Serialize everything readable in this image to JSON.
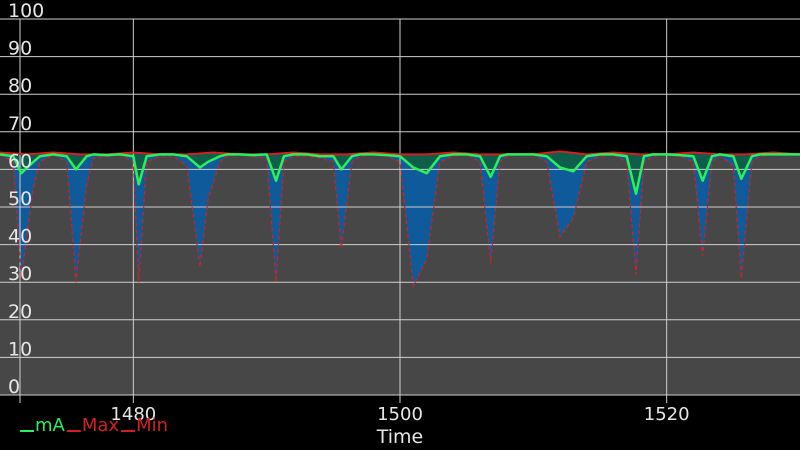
{
  "chart_data": {
    "type": "line",
    "title": "",
    "xlabel": "Time",
    "ylabel": "",
    "xlim": [
      1470,
      1530
    ],
    "ylim": [
      0,
      100
    ],
    "x_ticks": [
      1480,
      1500,
      1520
    ],
    "y_ticks": [
      0,
      10,
      20,
      30,
      40,
      50,
      60,
      70,
      80,
      90,
      100
    ],
    "grid": true,
    "legend": "bottom-left",
    "colors": {
      "background": "#000000",
      "plot_area_low": "#474747",
      "grid": "#cfcfcf",
      "fill_mA": "#0f5a9a",
      "fill_band": "#0d5e4a",
      "mA": "#2af05a",
      "Max": "#d42020",
      "Min": "#d42020"
    },
    "series": [
      {
        "name": "mA",
        "color": "#2af05a",
        "x": [
          1470,
          1471,
          1471.6,
          1472.5,
          1473,
          1474,
          1475,
          1475.7,
          1476.5,
          1477,
          1478,
          1479,
          1480,
          1480.4,
          1481,
          1482,
          1483,
          1484,
          1485,
          1485.6,
          1486.5,
          1487,
          1488,
          1489,
          1490,
          1490.7,
          1491.3,
          1492,
          1493,
          1494,
          1495,
          1495.6,
          1496.4,
          1497,
          1498,
          1499,
          1500,
          1501,
          1502,
          1503,
          1504,
          1505,
          1506,
          1506.8,
          1507.5,
          1508,
          1509,
          1510,
          1511,
          1512,
          1513,
          1514,
          1515,
          1516,
          1517,
          1517.7,
          1518.3,
          1519,
          1520,
          1521,
          1522,
          1522.7,
          1523.4,
          1524,
          1525,
          1525.6,
          1526.4,
          1527,
          1528,
          1529,
          1530
        ],
        "values": [
          64,
          63.5,
          59,
          62,
          63.5,
          64,
          63.5,
          60,
          63.5,
          64,
          63.8,
          64,
          63.5,
          56,
          63.5,
          64,
          64,
          63.5,
          60.5,
          62,
          63.5,
          64,
          64,
          63.8,
          64,
          57,
          63.5,
          64,
          64,
          63.5,
          63.5,
          60,
          63.5,
          64,
          64,
          63.8,
          63.5,
          60.5,
          59,
          63.5,
          64,
          64,
          63.5,
          58,
          63.5,
          64,
          64,
          64,
          63.5,
          60.5,
          59.5,
          63.5,
          64,
          64,
          63.5,
          53.5,
          63.5,
          64,
          64,
          63.8,
          63.5,
          57,
          63.5,
          64,
          63.5,
          57.5,
          63.5,
          64,
          64,
          64,
          64
        ]
      },
      {
        "name": "Max",
        "color": "#d42020",
        "x": [
          1470,
          1472,
          1474,
          1476,
          1478,
          1480,
          1482,
          1484,
          1486,
          1488,
          1490,
          1492,
          1494,
          1496,
          1498,
          1500,
          1502,
          1504,
          1506,
          1508,
          1510,
          1512,
          1514,
          1516,
          1518,
          1520,
          1522,
          1524,
          1526,
          1528,
          1530
        ],
        "values": [
          64.5,
          64,
          64.5,
          64,
          64,
          64.5,
          64,
          64,
          64.5,
          64,
          64,
          64.5,
          64,
          64,
          64.5,
          64,
          64,
          64.5,
          64,
          64,
          64,
          64.8,
          64,
          64.5,
          64,
          64,
          64.5,
          64,
          64,
          64.5,
          64
        ]
      },
      {
        "name": "Min",
        "color": "#d42020",
        "x": [
          1470,
          1471,
          1471.6,
          1472.5,
          1473,
          1474,
          1475,
          1475.7,
          1476.5,
          1477,
          1478,
          1479,
          1480,
          1480.4,
          1481,
          1482,
          1483,
          1484,
          1485,
          1485.6,
          1486.5,
          1487,
          1488,
          1489,
          1490,
          1490.7,
          1491.3,
          1492,
          1493,
          1494,
          1495,
          1495.6,
          1496.4,
          1497,
          1498,
          1499,
          1500,
          1501,
          1502,
          1503,
          1504,
          1505,
          1506,
          1506.8,
          1507.5,
          1508,
          1509,
          1510,
          1511,
          1512,
          1513,
          1514,
          1515,
          1516,
          1517,
          1517.7,
          1518.3,
          1519,
          1520,
          1521,
          1522,
          1522.7,
          1523.4,
          1524,
          1525,
          1525.6,
          1526.4,
          1527,
          1528,
          1529,
          1530
        ],
        "values": [
          64,
          62,
          31,
          55,
          62,
          64,
          62,
          30,
          56,
          63,
          63.5,
          64,
          62,
          30,
          62,
          63.5,
          63.5,
          61,
          34,
          52,
          62,
          63.5,
          64,
          63.5,
          63,
          30,
          62,
          63.5,
          63.5,
          63,
          62,
          39,
          62,
          63.5,
          64,
          63.5,
          62,
          29,
          36,
          62,
          63.5,
          64,
          62,
          35,
          62,
          63.5,
          64,
          64,
          62,
          42,
          47,
          62,
          63.5,
          64,
          62,
          32,
          62,
          63.5,
          64,
          63.5,
          62,
          37,
          62,
          63.5,
          61,
          31,
          62,
          63.5,
          64,
          64,
          64
        ]
      }
    ]
  }
}
